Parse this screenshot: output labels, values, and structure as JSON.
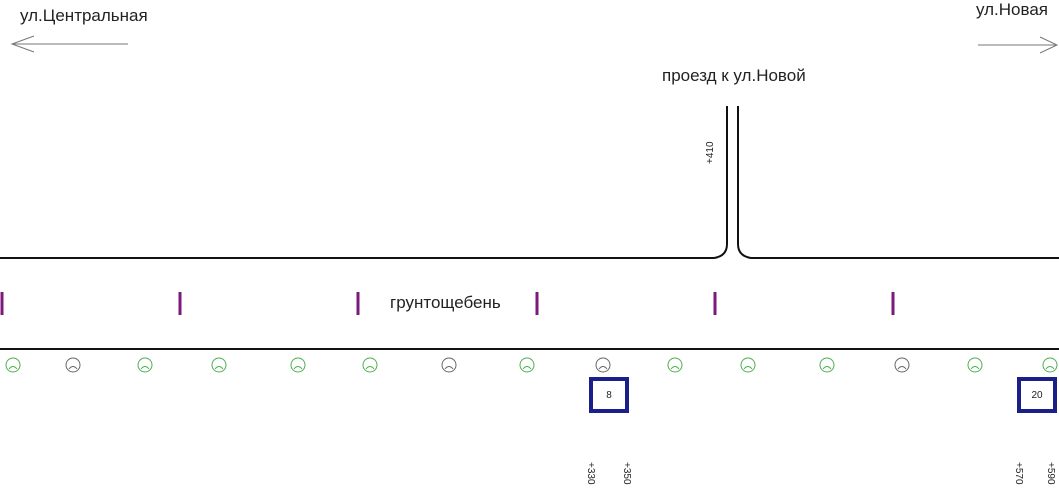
{
  "labels": {
    "street_left": "ул.Центральная",
    "street_right": "ул.Новая",
    "drive": "проезд к ул.Новой",
    "surface": "грунтощебень"
  },
  "chainages": {
    "drive": "+410",
    "c330": "+330",
    "c350": "+350",
    "c570": "+570",
    "c590": "+590"
  },
  "boxes": {
    "b1": "8",
    "b2": "20"
  },
  "colors": {
    "road_line": "#111111",
    "marker": "#7a1a7a",
    "box_border": "#1b1f8a",
    "symbol_green": "#4caf50",
    "symbol_gray": "#666666"
  },
  "symbols": [
    "green",
    "gray",
    "green",
    "green",
    "green",
    "green",
    "gray",
    "green",
    "gray",
    "green",
    "green",
    "green",
    "gray",
    "green",
    "green"
  ]
}
